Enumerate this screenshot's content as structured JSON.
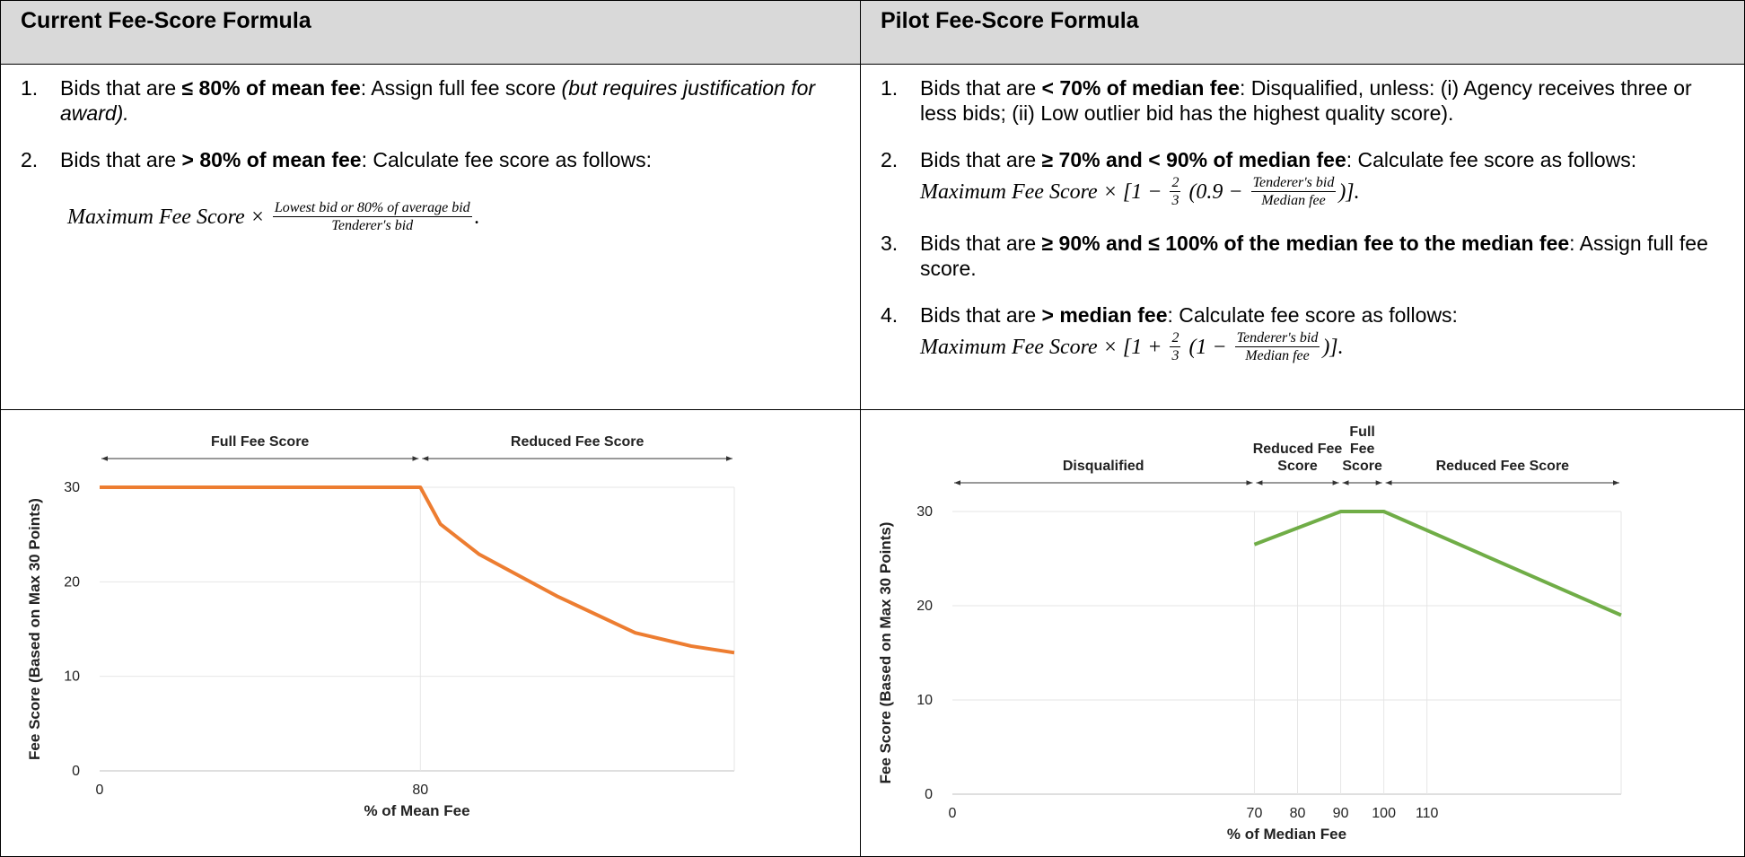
{
  "table": {
    "columns": [
      {
        "header": "Current Fee-Score Formula",
        "items": [
          {
            "marker": "1.",
            "runs": [
              {
                "text": "Bids that are "
              },
              {
                "text": "≤ 80% of mean fee",
                "style": "bold"
              },
              {
                "text": ": Assign full fee score "
              },
              {
                "text": "(but requires justification for award).",
                "style": "italic"
              }
            ]
          },
          {
            "marker": "2.",
            "runs": [
              {
                "text": "Bids that are "
              },
              {
                "text": "> 80% of mean fee",
                "style": "bold"
              },
              {
                "text": ": Calculate fee score as follows:"
              }
            ],
            "formula": [
              "Maximum Fee Score",
              " × ",
              {
                "num": "Lowest bid or 80% of average bid",
                "den": "Tenderer′s bid"
              },
              "."
            ]
          }
        ]
      },
      {
        "header": "Pilot Fee-Score Formula",
        "items": [
          {
            "marker": "1.",
            "runs": [
              {
                "text": "Bids that are "
              },
              {
                "text": "< 70% of median fee",
                "style": "bold"
              },
              {
                "text": ": Disqualified, unless: (i) Agency receives three or less bids; (ii) Low outlier bid has the highest quality score)."
              }
            ]
          },
          {
            "marker": "2.",
            "runs": [
              {
                "text": "Bids that are "
              },
              {
                "text": "≥ 70% and < 90% of median fee",
                "style": "bold"
              },
              {
                "text": ": Calculate fee score as follows:"
              }
            ],
            "formula": [
              "Maximum Fee Score",
              " × [1 − ",
              {
                "num": "2",
                "den": "3"
              },
              " (0.9 − ",
              {
                "num": "Tendererʹs bid",
                "den": "Median fee"
              },
              ")]."
            ]
          },
          {
            "marker": "3.",
            "runs": [
              {
                "text": "Bids that are "
              },
              {
                "text": "≥ 90% and ≤ 100% of the median fee to the median fee",
                "style": "bold"
              },
              {
                "text": ": Assign full fee score."
              }
            ]
          },
          {
            "marker": "4.",
            "runs": [
              {
                "text": "Bids that are "
              },
              {
                "text": "> median fee",
                "style": "bold"
              },
              {
                "text": ": Calculate fee score as follows:"
              }
            ],
            "formula": [
              "Maximum Fee Score",
              " × [1 + ",
              {
                "num": "2",
                "den": "3"
              },
              " (1 − ",
              {
                "num": "Tendererʹs bid",
                "den": "Median fee"
              },
              ")]."
            ]
          }
        ]
      }
    ]
  },
  "chart_data": [
    {
      "type": "line",
      "x_label": "% of Mean Fee",
      "y_label": "Fee Score (Based on Max 30 Points)",
      "x": [
        0,
        80,
        85,
        94.7,
        114,
        133.6,
        147.5,
        158.3
      ],
      "series": [
        {
          "color": "#ed7d31",
          "values": [
            30,
            30,
            26.1,
            22.9,
            18.5,
            14.6,
            13.2,
            12.5
          ]
        }
      ],
      "xlim": [
        0,
        158.3
      ],
      "ylim": [
        0,
        30
      ],
      "xticks": [
        0,
        80
      ],
      "yticks": [
        0,
        10,
        20,
        30
      ],
      "grid": true,
      "annotations": [
        {
          "lines": [
            "Full Fee Score"
          ]
        },
        {
          "lines": [
            "Reduced Fee Score"
          ]
        }
      ]
    },
    {
      "type": "line",
      "x_label": "% of Median Fee",
      "y_label": "Fee Score (Based on Max 30 Points)",
      "x": [
        70,
        90,
        100,
        155
      ],
      "series": [
        {
          "color": "#70ad47",
          "values": [
            26.5,
            30,
            30,
            19
          ]
        }
      ],
      "xlim": [
        0,
        155
      ],
      "ylim": [
        0,
        30
      ],
      "xticks": [
        0,
        70,
        80,
        90,
        100,
        110
      ],
      "yticks": [
        0,
        10,
        20,
        30
      ],
      "grid": true,
      "annotations": [
        {
          "lines": [
            "Disqualified"
          ]
        },
        {
          "lines": [
            "Reduced Fee",
            "Score"
          ]
        },
        {
          "lines": [
            "Full",
            "Fee",
            "Score"
          ]
        },
        {
          "lines": [
            "Reduced Fee Score"
          ]
        }
      ]
    }
  ]
}
